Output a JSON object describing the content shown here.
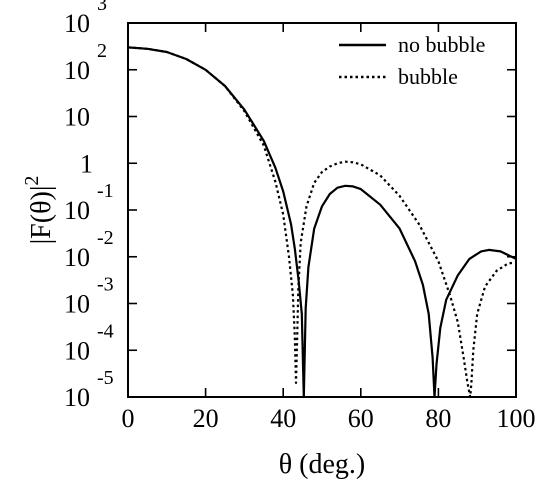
{
  "chart_data": {
    "type": "line",
    "xlabel": "θ (deg.)",
    "ylabel": "|F(θ)|",
    "ylabel_superscript": "2",
    "xlim": [
      0,
      100
    ],
    "ylim_log10": [
      -5,
      3
    ],
    "yscale": "log",
    "grid": false,
    "legend_position": "top-right",
    "x_ticks": [
      "0",
      "20",
      "40",
      "60",
      "80",
      "100"
    ],
    "y_ticks": [
      {
        "base": "10",
        "exp": "-5",
        "log10": -5
      },
      {
        "base": "10",
        "exp": "-4",
        "log10": -4
      },
      {
        "base": "10",
        "exp": "-3",
        "log10": -3
      },
      {
        "base": "10",
        "exp": "-2",
        "log10": -2
      },
      {
        "base": "10",
        "exp": "-1",
        "log10": -1
      },
      {
        "base": "1",
        "exp": "",
        "log10": 0
      },
      {
        "base": "10",
        "exp": "",
        "log10": 1
      },
      {
        "base": "10",
        "exp": "2",
        "log10": 2
      },
      {
        "base": "10",
        "exp": "3",
        "log10": 3
      }
    ],
    "series": [
      {
        "name": "no bubble",
        "style": "solid",
        "color": "#000000",
        "x": [
          0,
          5,
          10,
          15,
          20,
          25,
          30,
          35,
          38,
          40,
          42,
          43,
          44,
          44.8,
          45.3,
          45.8,
          46.5,
          48,
          50,
          52,
          54,
          56,
          58,
          60,
          65,
          70,
          74,
          76,
          77.5,
          78.5,
          79,
          79.5,
          80.5,
          82,
          85,
          88,
          91,
          93,
          96,
          100
        ],
        "y": [
          300,
          280,
          240,
          170,
          100,
          45,
          14,
          3,
          0.8,
          0.25,
          0.05,
          0.015,
          0.003,
          0.0006,
          1e-05,
          0.0008,
          0.006,
          0.04,
          0.12,
          0.22,
          0.3,
          0.33,
          0.32,
          0.28,
          0.13,
          0.04,
          0.008,
          0.0025,
          0.0006,
          7e-05,
          1e-05,
          5e-05,
          0.0003,
          0.0012,
          0.004,
          0.009,
          0.013,
          0.014,
          0.013,
          0.009
        ]
      },
      {
        "name": "bubble",
        "style": "dotted",
        "color": "#000000",
        "x": [
          0,
          5,
          10,
          15,
          20,
          25,
          30,
          35,
          38,
          40,
          41.5,
          42.5,
          43,
          43.3,
          43.6,
          43.9,
          44.5,
          46,
          48,
          50,
          52,
          54,
          56,
          58,
          60,
          65,
          70,
          75,
          80,
          83,
          85,
          86.5,
          87.5,
          88.2,
          88.5,
          89,
          90,
          92,
          95,
          98,
          100
        ],
        "y": [
          300,
          280,
          240,
          170,
          100,
          45,
          13,
          2.4,
          0.4,
          0.08,
          0.01,
          0.0015,
          0.0002,
          2e-05,
          0.0002,
          0.002,
          0.02,
          0.12,
          0.38,
          0.65,
          0.85,
          1.0,
          1.08,
          1.05,
          0.95,
          0.55,
          0.2,
          0.05,
          0.008,
          0.0015,
          0.0004,
          7e-05,
          2e-05,
          5e-06,
          2e-05,
          0.0001,
          0.0006,
          0.0023,
          0.005,
          0.0072,
          0.0075
        ]
      }
    ]
  }
}
